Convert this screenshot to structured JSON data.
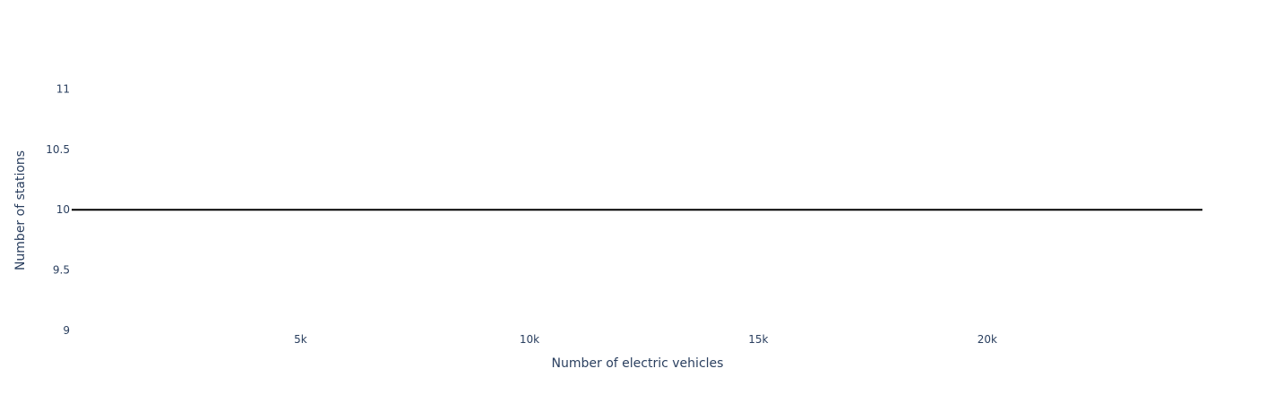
{
  "chart_data": {
    "type": "line",
    "title": "",
    "xlabel": "Number of electric vehicles",
    "ylabel": "Number of stations",
    "xlim": [
      0,
      24700
    ],
    "ylim": [
      9,
      11.5
    ],
    "x_ticks": [
      {
        "value": 5000,
        "label": "5k"
      },
      {
        "value": 10000,
        "label": "10k"
      },
      {
        "value": 15000,
        "label": "15k"
      },
      {
        "value": 20000,
        "label": "20k"
      }
    ],
    "y_ticks": [
      {
        "value": 9,
        "label": "9"
      },
      {
        "value": 9.5,
        "label": "9.5"
      },
      {
        "value": 10,
        "label": "10"
      },
      {
        "value": 10.5,
        "label": "10.5"
      },
      {
        "value": 11,
        "label": "11"
      }
    ],
    "grid": false,
    "series": [
      {
        "color": "#000000",
        "x": [
          0,
          24700
        ],
        "y": [
          10,
          10
        ]
      }
    ]
  }
}
